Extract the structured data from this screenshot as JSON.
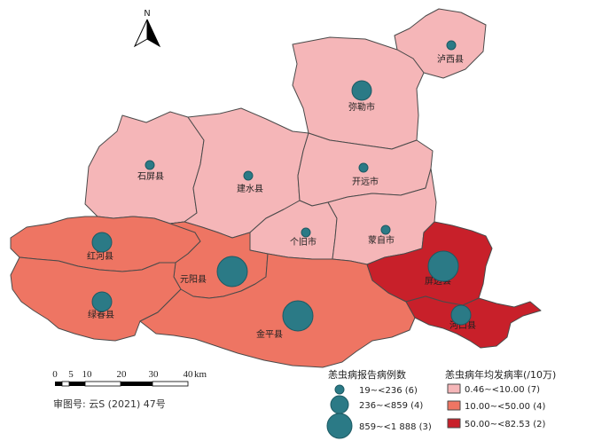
{
  "north": {
    "label": "N"
  },
  "colors": {
    "low": "#f5b6b8",
    "mid": "#ee7563",
    "high": "#c8202a",
    "bubble": "#2b7a86",
    "border": "#4a4a4a"
  },
  "regions": [
    {
      "name": "泸西县",
      "rate_class": "low"
    },
    {
      "name": "弥勒市",
      "rate_class": "low"
    },
    {
      "name": "石屏县",
      "rate_class": "low"
    },
    {
      "name": "建水县",
      "rate_class": "low"
    },
    {
      "name": "开远市",
      "rate_class": "low"
    },
    {
      "name": "个旧市",
      "rate_class": "low"
    },
    {
      "name": "蒙自市",
      "rate_class": "low"
    },
    {
      "name": "红河县",
      "rate_class": "mid"
    },
    {
      "name": "元阳县",
      "rate_class": "mid"
    },
    {
      "name": "绿春县",
      "rate_class": "mid"
    },
    {
      "name": "金平县",
      "rate_class": "mid"
    },
    {
      "name": "屏边县",
      "rate_class": "high"
    },
    {
      "name": "河口县",
      "rate_class": "high"
    }
  ],
  "case_legend": {
    "title": "恙虫病报告病例数",
    "items": [
      {
        "label": "19~<236 (6)",
        "size_class": "small"
      },
      {
        "label": "236~<859 (4)",
        "size_class": "medium"
      },
      {
        "label": "859~<1 888 (3)",
        "size_class": "large"
      }
    ]
  },
  "rate_legend": {
    "title": "恙虫病年均发病率(/10万)",
    "items": [
      {
        "label": "0.46~<10.00 (7)",
        "class": "low"
      },
      {
        "label": "10.00~<50.00 (4)",
        "class": "mid"
      },
      {
        "label": "50.00~<82.53 (2)",
        "class": "high"
      }
    ]
  },
  "scale_bar": {
    "ticks": [
      "0",
      "5",
      "10",
      "20",
      "30",
      "40"
    ],
    "unit": "km"
  },
  "review_number": "审图号: 云S (2021) 47号"
}
